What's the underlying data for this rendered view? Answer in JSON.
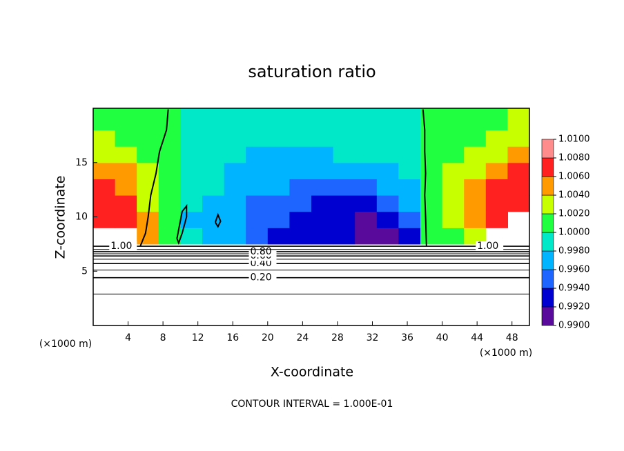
{
  "chart_data": {
    "type": "contour",
    "title": "saturation ratio",
    "xlabel": "X-coordinate",
    "ylabel": "Z-coordinate",
    "xunit": "(×1000 m)",
    "yunit": "(×1000 m)",
    "footer": "CONTOUR INTERVAL = 1.000E-01",
    "xlim": [
      0,
      50
    ],
    "ylim": [
      0,
      20
    ],
    "xticks": [
      4,
      8,
      12,
      16,
      20,
      24,
      28,
      32,
      36,
      40,
      44,
      48
    ],
    "yticks": [
      5,
      10,
      15
    ],
    "field": {
      "x_edges": [
        0,
        2.5,
        5,
        7.5,
        10,
        12.5,
        15,
        17.5,
        20,
        22.5,
        25,
        27.5,
        30,
        32.5,
        35,
        37.5,
        40,
        42.5,
        45,
        47.5,
        50
      ],
      "z_edges": [
        7.5,
        9,
        10.5,
        12,
        13.5,
        15,
        16.5,
        18,
        20
      ],
      "values": [
        [
          null,
          null,
          1.004,
          1.001,
          0.998,
          0.997,
          0.996,
          0.994,
          0.993,
          0.993,
          0.992,
          0.992,
          0.991,
          0.991,
          0.992,
          1.0,
          1.001,
          1.003,
          null,
          null
        ],
        [
          1.006,
          1.006,
          1.004,
          1.001,
          0.997,
          0.996,
          0.996,
          0.995,
          0.994,
          0.993,
          0.993,
          0.992,
          0.991,
          0.992,
          0.995,
          1.0,
          1.002,
          1.004,
          1.006,
          null
        ],
        [
          1.007,
          1.006,
          1.003,
          1.001,
          0.998,
          0.997,
          0.996,
          0.995,
          0.995,
          0.994,
          0.993,
          0.993,
          0.993,
          0.994,
          0.996,
          1.0,
          1.002,
          1.004,
          1.006,
          1.007
        ],
        [
          1.007,
          1.005,
          1.003,
          1.0,
          0.998,
          0.998,
          0.997,
          0.996,
          0.996,
          0.995,
          0.995,
          0.995,
          0.995,
          0.996,
          0.997,
          1.0,
          1.002,
          1.004,
          1.006,
          1.007
        ],
        [
          1.005,
          1.004,
          1.002,
          1.0,
          0.999,
          0.998,
          0.997,
          0.997,
          0.996,
          0.996,
          0.996,
          0.996,
          0.996,
          0.997,
          0.998,
          1.0,
          1.002,
          1.003,
          1.005,
          1.006
        ],
        [
          1.003,
          1.002,
          1.001,
          1.0,
          0.999,
          0.998,
          0.998,
          0.997,
          0.997,
          0.997,
          0.997,
          0.998,
          0.998,
          0.998,
          0.999,
          1.0,
          1.001,
          1.002,
          1.003,
          1.004
        ],
        [
          1.002,
          1.001,
          1.001,
          1.0,
          0.999,
          0.999,
          0.998,
          0.998,
          0.998,
          0.998,
          0.998,
          0.998,
          0.999,
          0.999,
          0.999,
          1.0,
          1.001,
          1.001,
          1.002,
          1.003
        ],
        [
          1.001,
          1.001,
          1.0,
          1.0,
          0.999,
          0.999,
          0.999,
          0.999,
          0.999,
          0.999,
          0.999,
          0.999,
          0.999,
          0.999,
          0.999,
          1.0,
          1.0,
          1.001,
          1.001,
          1.002
        ]
      ]
    },
    "colorbar": {
      "ticks": [
        {
          "value": 0.99,
          "label": "0.9900"
        },
        {
          "value": 0.992,
          "label": "0.9920"
        },
        {
          "value": 0.994,
          "label": "0.9940"
        },
        {
          "value": 0.996,
          "label": "0.9960"
        },
        {
          "value": 0.998,
          "label": "0.9980"
        },
        {
          "value": 1.0,
          "label": "1.0000"
        },
        {
          "value": 1.002,
          "label": "1.0020"
        },
        {
          "value": 1.004,
          "label": "1.0040"
        },
        {
          "value": 1.006,
          "label": "1.0060"
        },
        {
          "value": 1.008,
          "label": "1.0080"
        },
        {
          "value": 1.01,
          "label": "1.0100"
        }
      ],
      "colors": [
        "#5a0a9a",
        "#0000d0",
        "#1e64ff",
        "#00b4ff",
        "#00e8c8",
        "#20ff40",
        "#c8ff00",
        "#ff9a00",
        "#ff2020",
        "#ff8c8c"
      ]
    },
    "saturation_lines": [
      {
        "x": [
          8.6,
          8.4,
          7.6,
          7.2,
          6.6,
          6.3,
          6.0,
          5.4
        ],
        "z": [
          19.9,
          18,
          16,
          14,
          12,
          10,
          8.5,
          7.3
        ]
      },
      {
        "x": [
          37.8,
          38.0,
          38.0,
          38.1,
          38.0,
          38.1,
          38.2
        ],
        "z": [
          19.9,
          18,
          16,
          14,
          12,
          10,
          7.3
        ]
      },
      {
        "x": [
          9.6,
          10.2,
          10.7,
          10.7,
          10.2,
          9.8,
          9.6
        ],
        "z": [
          8.0,
          10.5,
          11.0,
          10.0,
          8.5,
          7.6,
          8.0
        ]
      },
      {
        "x": [
          14.0,
          14.3,
          14.6,
          14.3,
          14.0
        ],
        "z": [
          9.5,
          10.2,
          9.6,
          9.1,
          9.5
        ]
      }
    ],
    "contours": [
      {
        "level": 0.1,
        "z": 2.9
      },
      {
        "level": 0.2,
        "z": 4.4,
        "label": "0.20"
      },
      {
        "level": 0.3,
        "z": 5.1
      },
      {
        "level": 0.4,
        "z": 5.7,
        "label": "0.40"
      },
      {
        "level": 0.5,
        "z": 6.1
      },
      {
        "level": 0.6,
        "z": 6.4,
        "label": "0.60"
      },
      {
        "level": 0.7,
        "z": 6.6
      },
      {
        "level": 0.8,
        "z": 6.8,
        "label": "0.80"
      },
      {
        "level": 0.9,
        "z": 7.0
      },
      {
        "level": 1.0,
        "z": 7.3,
        "label": "1.00"
      }
    ]
  }
}
